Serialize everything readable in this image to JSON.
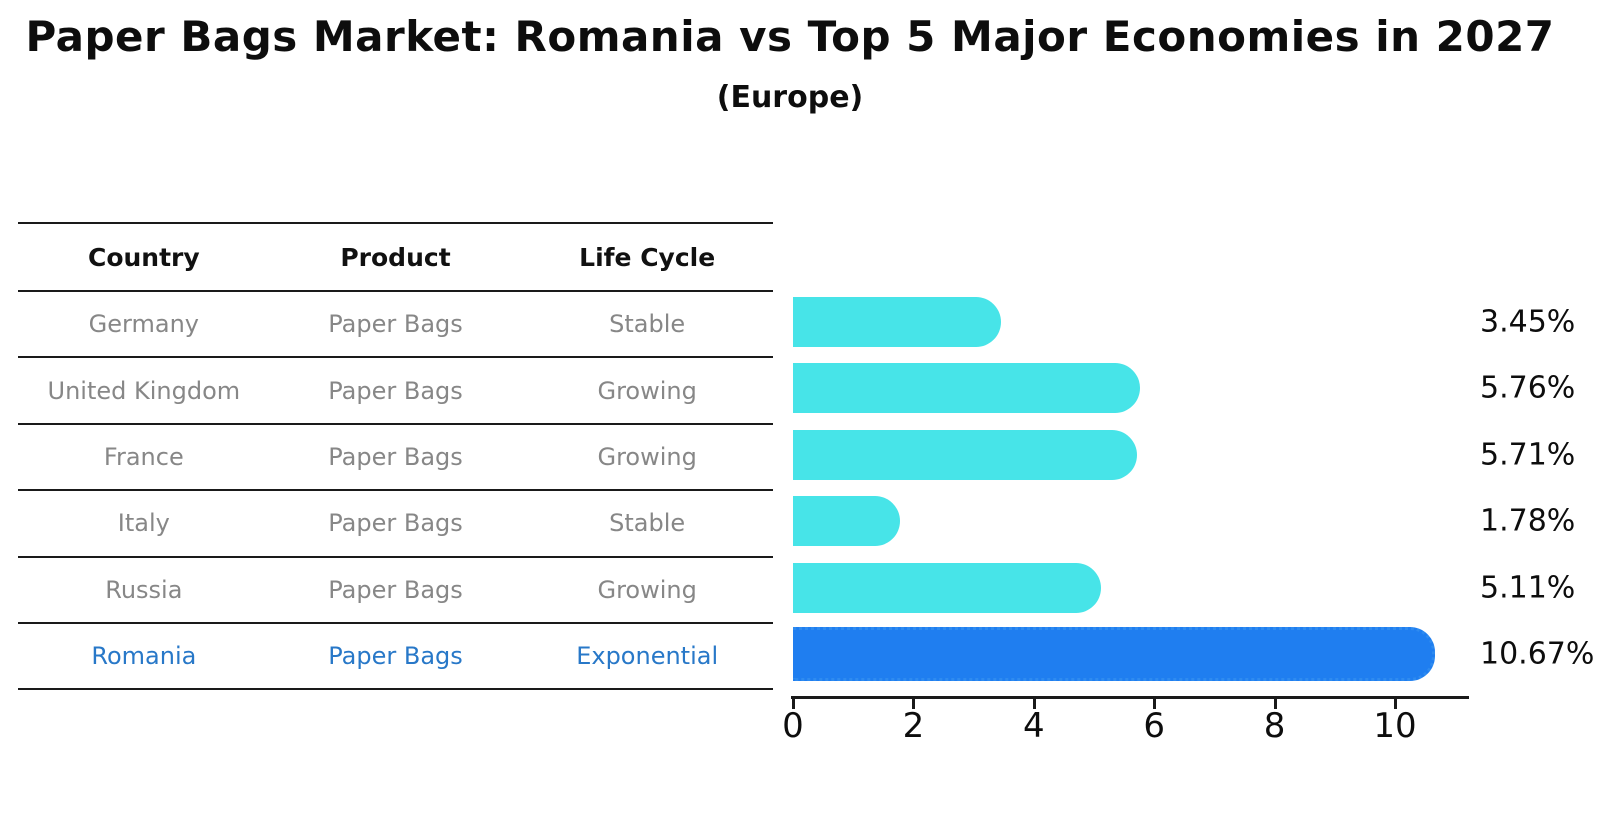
{
  "title": "Paper Bags Market: Romania vs Top 5 Major Economies in 2027",
  "subtitle": "(Europe)",
  "colors": {
    "bar_default": "#47E4E8",
    "bar_highlight": "#1F7EF0",
    "highlight_text": "#2878C8",
    "table_text": "#878787",
    "header_text": "#111111",
    "axis_color": "#1a1a1a"
  },
  "table": {
    "headers": [
      "Country",
      "Product",
      "Life Cycle"
    ],
    "rows": [
      {
        "country": "Germany",
        "product": "Paper Bags",
        "life_cycle": "Stable",
        "highlight": false
      },
      {
        "country": "United Kingdom",
        "product": "Paper Bags",
        "life_cycle": "Growing",
        "highlight": false
      },
      {
        "country": "France",
        "product": "Paper Bags",
        "life_cycle": "Growing",
        "highlight": false
      },
      {
        "country": "Italy",
        "product": "Paper Bags",
        "life_cycle": "Stable",
        "highlight": false
      },
      {
        "country": "Russia",
        "product": "Paper Bags",
        "life_cycle": "Growing",
        "highlight": false
      },
      {
        "country": "Romania",
        "product": "Paper Bags",
        "life_cycle": "Exponential",
        "highlight": true
      }
    ]
  },
  "chart_data": {
    "type": "bar",
    "orientation": "horizontal",
    "title": "Paper Bags Market: Romania vs Top 5 Major Economies in 2027",
    "subtitle": "(Europe)",
    "categories": [
      "Germany",
      "United Kingdom",
      "France",
      "Italy",
      "Russia",
      "Romania"
    ],
    "values": [
      3.45,
      5.76,
      5.71,
      1.78,
      5.11,
      10.67
    ],
    "labels": [
      "3.45%",
      "5.76%",
      "5.71%",
      "1.78%",
      "5.11%",
      "10.67%"
    ],
    "highlight_index": 5,
    "x_ticks": [
      0,
      2,
      4,
      6,
      8,
      10
    ],
    "xlim": [
      0,
      11.25
    ],
    "xlabel": "",
    "ylabel": "",
    "grid": false,
    "legend": "none"
  }
}
